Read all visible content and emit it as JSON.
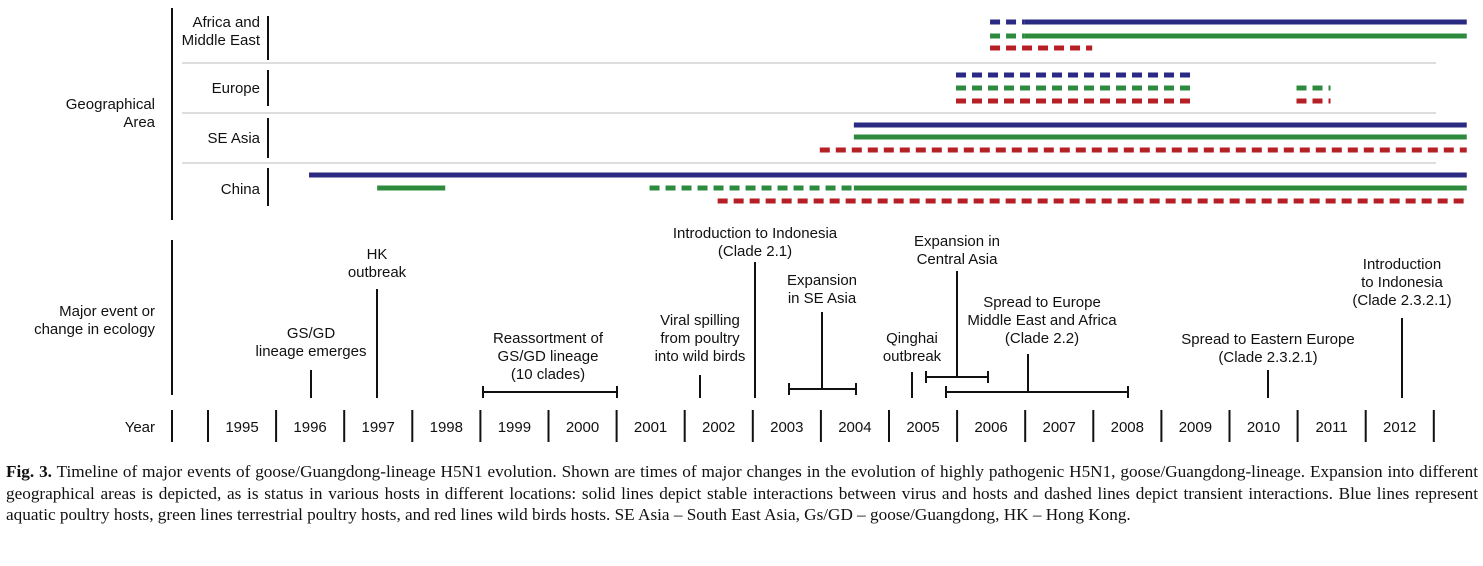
{
  "colors": {
    "aquatic_poultry": "#2a2a82",
    "terrestrial_poultry": "#2e8b3e",
    "wild_birds": "#b62025",
    "axis": "#111111",
    "grid": "#bbbbbb"
  },
  "sections": {
    "geo_label": [
      "Geographical",
      "Area"
    ],
    "event_label": [
      "Major event or",
      "change in ecology"
    ],
    "year_label": "Year"
  },
  "regions": [
    {
      "name": [
        "Africa and",
        "Middle East"
      ],
      "key": "africa"
    },
    {
      "name": [
        "Europe"
      ],
      "key": "europe"
    },
    {
      "name": [
        "SE Asia"
      ],
      "key": "seasia"
    },
    {
      "name": [
        "China"
      ],
      "key": "china"
    }
  ],
  "years": [
    "1995",
    "1996",
    "1997",
    "1998",
    "1999",
    "2000",
    "2001",
    "2002",
    "2003",
    "2004",
    "2005",
    "2006",
    "2007",
    "2008",
    "2009",
    "2010",
    "2011",
    "2012"
  ],
  "line_legend": {
    "solid": "stable interaction",
    "dashed": "transient interaction",
    "blue": "aquatic poultry hosts",
    "green": "terrestrial poultry hosts",
    "red": "wild birds hosts"
  },
  "chart_data": {
    "type": "timeline",
    "x_unit": "year",
    "xlim": [
      1995,
      2013
    ],
    "segments": [
      {
        "region": "africa",
        "host": "aquatic poultry",
        "style": "dashed",
        "start": 2005.5,
        "end": 2006.0
      },
      {
        "region": "africa",
        "host": "aquatic poultry",
        "style": "solid",
        "start": 2006.0,
        "end": 2012.5
      },
      {
        "region": "africa",
        "host": "terrestrial poultry",
        "style": "dashed",
        "start": 2005.5,
        "end": 2006.0
      },
      {
        "region": "africa",
        "host": "terrestrial poultry",
        "style": "solid",
        "start": 2006.0,
        "end": 2012.5
      },
      {
        "region": "africa",
        "host": "wild birds",
        "style": "dashed",
        "start": 2005.5,
        "end": 2007.0
      },
      {
        "region": "europe",
        "host": "aquatic poultry",
        "style": "dashed",
        "start": 2005.0,
        "end": 2008.5
      },
      {
        "region": "europe",
        "host": "terrestrial poultry",
        "style": "dashed",
        "start": 2005.0,
        "end": 2008.5
      },
      {
        "region": "europe",
        "host": "wild birds",
        "style": "dashed",
        "start": 2005.0,
        "end": 2008.5
      },
      {
        "region": "europe",
        "host": "terrestrial poultry",
        "style": "dashed",
        "start": 2010.0,
        "end": 2010.5
      },
      {
        "region": "europe",
        "host": "wild birds",
        "style": "dashed",
        "start": 2010.0,
        "end": 2010.5
      },
      {
        "region": "seasia",
        "host": "aquatic poultry",
        "style": "solid",
        "start": 2003.5,
        "end": 2012.5
      },
      {
        "region": "seasia",
        "host": "terrestrial poultry",
        "style": "solid",
        "start": 2003.5,
        "end": 2012.5
      },
      {
        "region": "seasia",
        "host": "wild birds",
        "style": "dashed",
        "start": 2003.0,
        "end": 2012.5
      },
      {
        "region": "china",
        "host": "aquatic poultry",
        "style": "solid",
        "start": 1995.5,
        "end": 2012.5
      },
      {
        "region": "china",
        "host": "terrestrial poultry",
        "style": "solid",
        "start": 1996.5,
        "end": 1997.5
      },
      {
        "region": "china",
        "host": "terrestrial poultry",
        "style": "dashed",
        "start": 2000.5,
        "end": 2003.5
      },
      {
        "region": "china",
        "host": "terrestrial poultry",
        "style": "solid",
        "start": 2003.5,
        "end": 2012.5
      },
      {
        "region": "china",
        "host": "wild birds",
        "style": "dashed",
        "start": 2001.5,
        "end": 2012.5
      }
    ],
    "events": [
      {
        "label": [
          "GS/GD",
          "lineage emerges"
        ],
        "year": 1996.0,
        "type": "point"
      },
      {
        "label": [
          "HK",
          "outbreak"
        ],
        "year": 1997.0,
        "type": "point"
      },
      {
        "label": [
          "Reassortment of",
          "GS/GD lineage",
          "(10 clades)"
        ],
        "start": 1999.0,
        "end": 2001.0,
        "type": "range"
      },
      {
        "label": [
          "Viral spilling",
          "from poultry",
          "into wild birds"
        ],
        "year": 2002.0,
        "type": "point"
      },
      {
        "label": [
          "Introduction to Indonesia",
          "(Clade 2.1)"
        ],
        "year": 2002.5,
        "type": "point"
      },
      {
        "label": [
          "Expansion",
          "in SE Asia"
        ],
        "start": 2003.0,
        "end": 2004.5,
        "type": "range"
      },
      {
        "label": [
          "Qinghai",
          "outbreak"
        ],
        "year": 2005.0,
        "type": "point"
      },
      {
        "label": [
          "Expansion in",
          "Central Asia"
        ],
        "start": 2005.0,
        "end": 2006.0,
        "type": "range"
      },
      {
        "label": [
          "Spread to Europe",
          "Middle East and Africa",
          "(Clade 2.2)"
        ],
        "start": 2005.3,
        "end": 2008.0,
        "type": "range"
      },
      {
        "label": [
          "Spread to Eastern Europe",
          "(Clade 2.3.2.1)"
        ],
        "year": 2010.0,
        "type": "point"
      },
      {
        "label": [
          "Introduction",
          "to Indonesia",
          "(Clade 2.3.2.1)"
        ],
        "year": 2012.0,
        "type": "point"
      }
    ]
  },
  "caption": {
    "fig_label": "Fig. 3.",
    "text": "Timeline of major events of goose/Guangdong-lineage H5N1 evolution. Shown are times of major changes in the evolution of highly pathogenic H5N1, goose/Guangdong-lineage. Expansion into different geographical areas is depicted, as is status in various hosts in different locations: solid lines depict stable interactions between virus and hosts and dashed lines depict transient interactions. Blue lines represent aquatic poultry hosts, green lines terrestrial poultry hosts, and red lines wild birds hosts. SE Asia – South East Asia, Gs/GD – goose/Guangdong, HK – Hong Kong."
  }
}
